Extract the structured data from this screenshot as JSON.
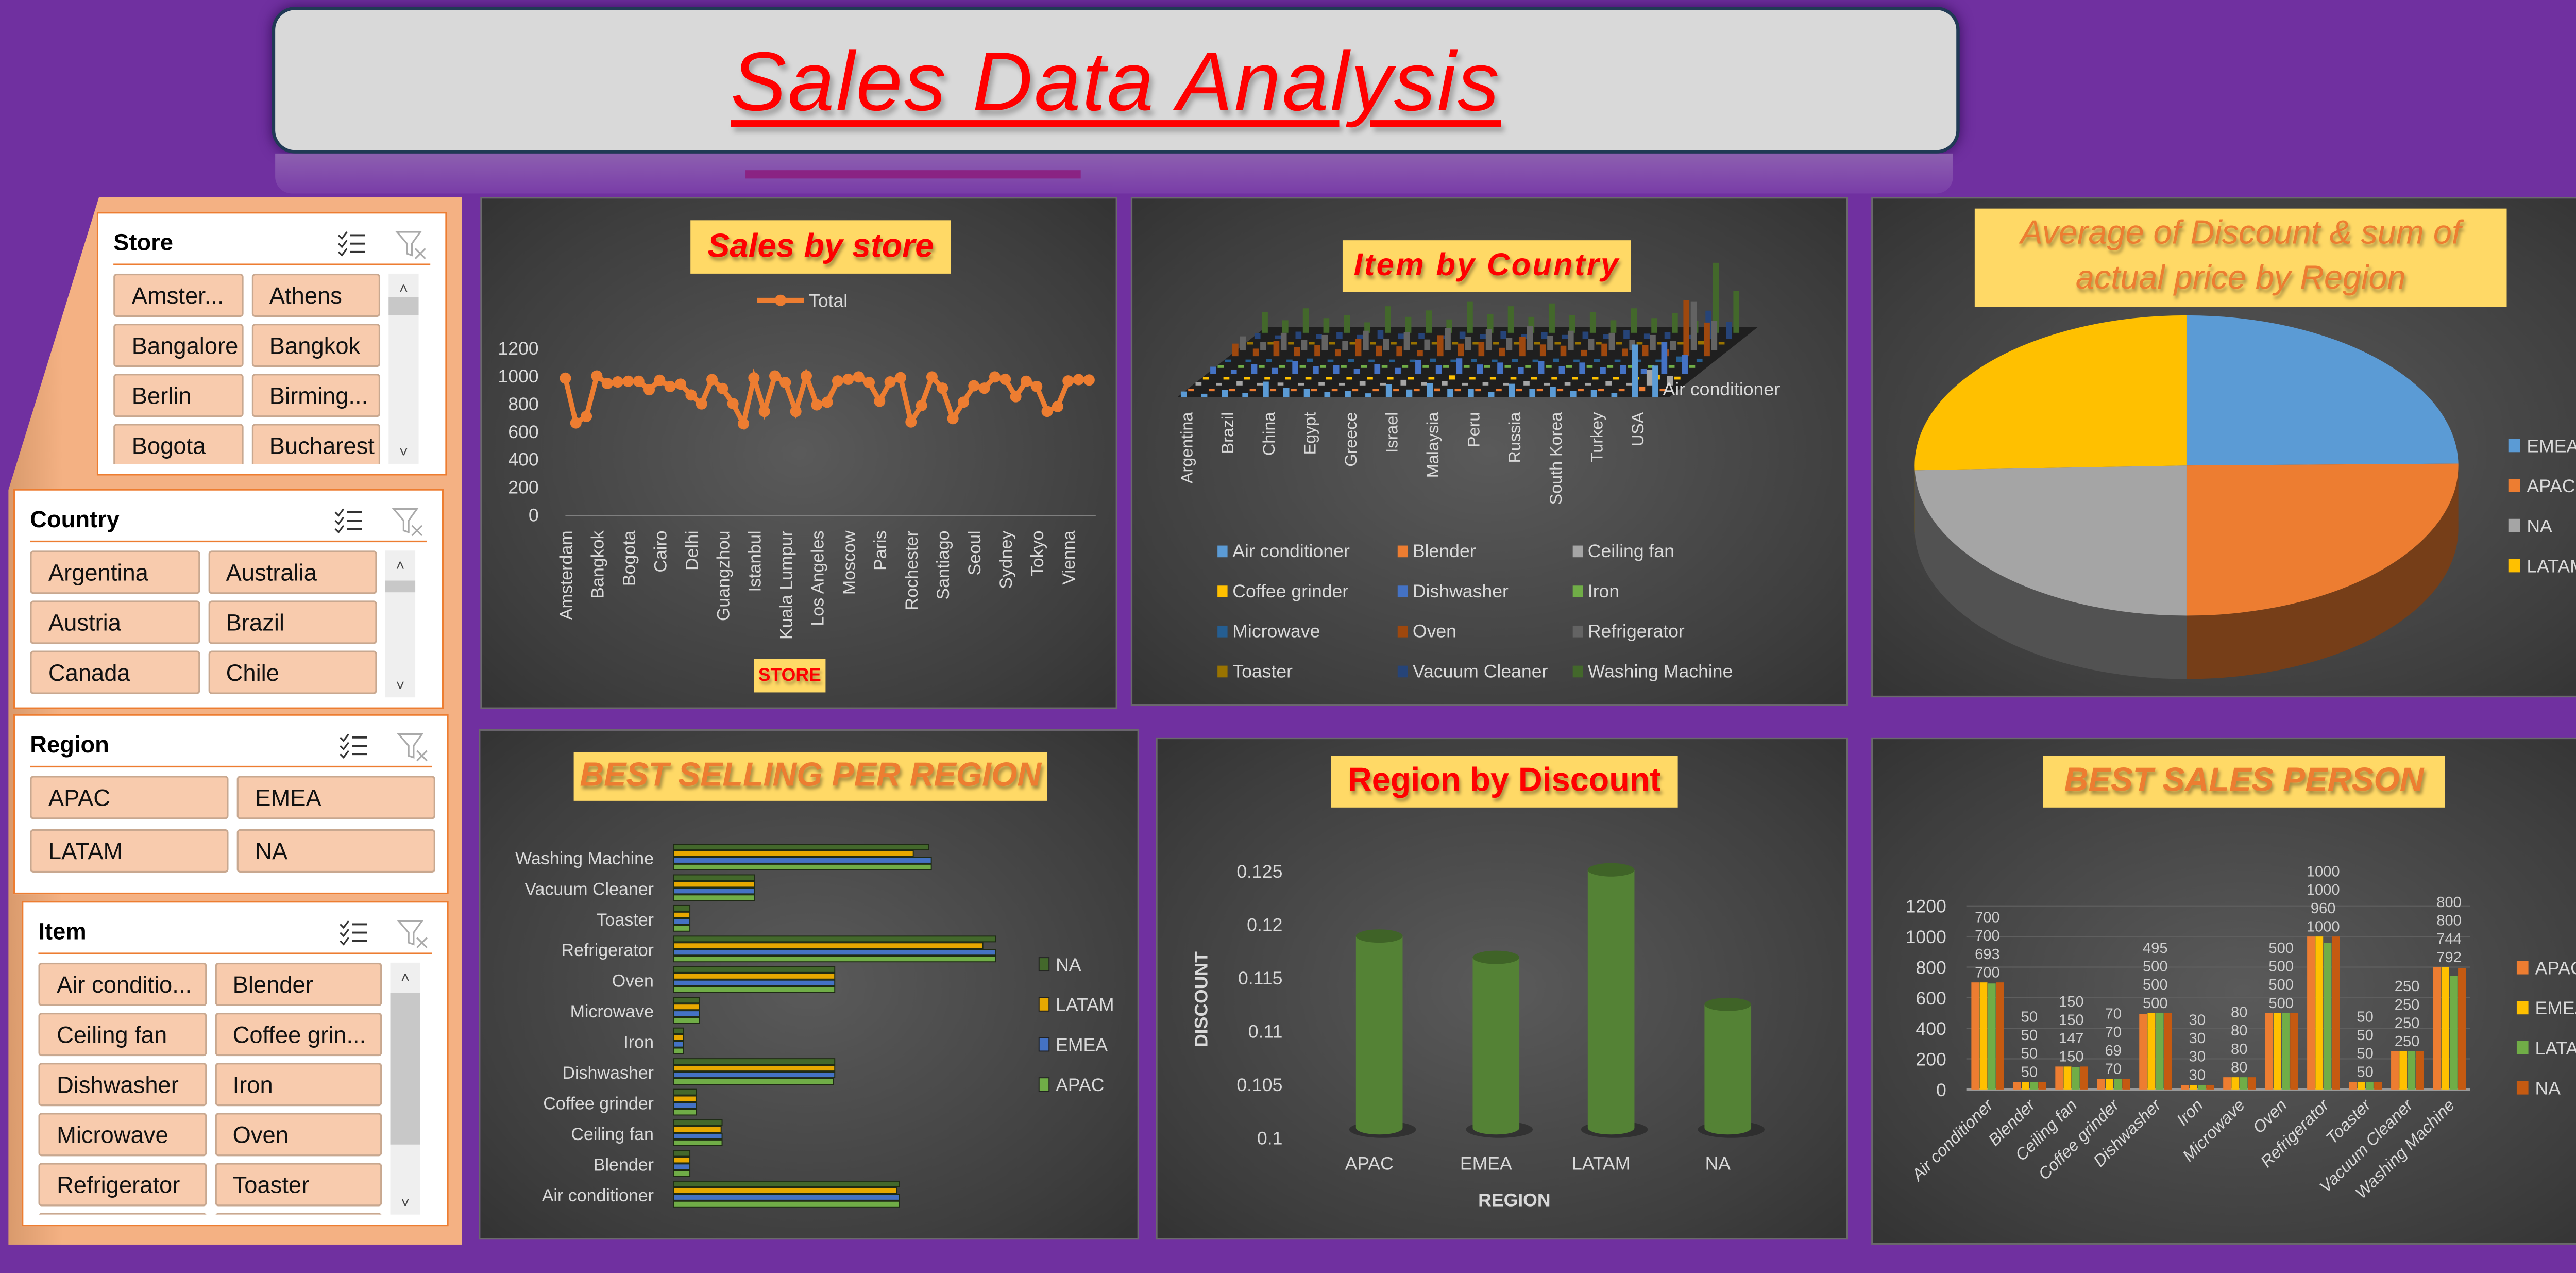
{
  "header": {
    "title": "Sales Data Analysis"
  },
  "slicers": {
    "store": {
      "title": "Store",
      "items": [
        "Amster...",
        "Athens",
        "Bangalore",
        "Bangkok",
        "Berlin",
        "Birming...",
        "Bogota",
        "Bucharest"
      ]
    },
    "country": {
      "title": "Country",
      "items": [
        "Argentina",
        "Australia",
        "Austria",
        "Brazil",
        "Canada",
        "Chile"
      ]
    },
    "region": {
      "title": "Region",
      "items": [
        "APAC",
        "EMEA",
        "LATAM",
        "NA"
      ]
    },
    "item": {
      "title": "Item",
      "items": [
        "Air conditio...",
        "Blender",
        "Ceiling fan",
        "Coffee grin...",
        "Dishwasher",
        "Iron",
        "Microwave",
        "Oven",
        "Refrigerator",
        "Toaster"
      ]
    }
  },
  "icons": {
    "multi_select": "multi-select-checklist-icon",
    "clear_filter": "clear-filter-funnel-icon"
  },
  "colors": {
    "background": "#7030a0",
    "title_red": "#ff0000",
    "title_box": "#ffd966",
    "slicer_button": "#f8cbad",
    "accent_orange": "#ed7d31"
  },
  "chart_data": [
    {
      "id": "sales_by_store",
      "type": "line",
      "title": "Sales by store",
      "legend": [
        "Total"
      ],
      "legend_position": "top",
      "xlabel": "STORE",
      "ylabel": "",
      "x_tick_labels": [
        "Amsterdam",
        "Bangkok",
        "Bogota",
        "Cairo",
        "Delhi",
        "Guangzhou",
        "Istanbul",
        "Kuala Lumpur",
        "Los Angeles",
        "Moscow",
        "Paris",
        "Rochester",
        "Santiago",
        "Seoul",
        "Sydney",
        "Tokyo",
        "Vienna"
      ],
      "values": [
        988,
        666,
        713,
        1004,
        950,
        961,
        966,
        966,
        905,
        973,
        928,
        945,
        867,
        803,
        978,
        914,
        805,
        661,
        990,
        749,
        1004,
        957,
        749,
        1004,
        796,
        815,
        968,
        980,
        997,
        957,
        822,
        961,
        992,
        673,
        791,
        997,
        916,
        697,
        815,
        933,
        916,
        997,
        980,
        855,
        966,
        928,
        749,
        784,
        968,
        978,
        975
      ],
      "ylim": [
        0,
        1200
      ],
      "yticks": [
        0,
        200,
        400,
        600,
        800,
        1000,
        1200
      ],
      "color": "#ed7d31"
    },
    {
      "id": "item_by_country",
      "type": "bar",
      "title": "Item by Country",
      "style": "3d-column",
      "categories": [
        "Argentina",
        "Brazil",
        "China",
        "Egypt",
        "Greece",
        "Israel",
        "Malaysia",
        "Peru",
        "Russia",
        "South Korea",
        "Turkey",
        "USA"
      ],
      "depth_label": "Air conditioner",
      "legend_position": "bottom",
      "series": [
        {
          "name": "Air conditioner",
          "color": "#5b9bd5",
          "values": [
            8,
            10,
            22,
            12,
            9,
            18,
            20,
            12,
            19,
            15,
            10,
            75
          ]
        },
        {
          "name": "Blender",
          "color": "#ed7d31",
          "values": [
            2,
            3,
            2,
            3,
            2,
            3,
            4,
            3,
            2,
            3,
            2,
            6
          ]
        },
        {
          "name": "Ceiling fan",
          "color": "#a5a5a5",
          "values": [
            5,
            6,
            4,
            5,
            6,
            8,
            6,
            5,
            6,
            5,
            6,
            22
          ]
        },
        {
          "name": "Coffee grinder",
          "color": "#ffc000",
          "values": [
            2,
            3,
            2,
            2,
            3,
            2,
            6,
            2,
            3,
            2,
            2,
            7
          ]
        },
        {
          "name": "Dishwasher",
          "color": "#4472c4",
          "values": [
            10,
            14,
            18,
            12,
            14,
            20,
            22,
            16,
            18,
            16,
            12,
            45
          ]
        },
        {
          "name": "Iron",
          "color": "#70ad47",
          "values": [
            1,
            1,
            1,
            1,
            1,
            1,
            1,
            1,
            1,
            1,
            1,
            4
          ]
        },
        {
          "name": "Microwave",
          "color": "#255e91",
          "values": [
            3,
            4,
            5,
            4,
            3,
            5,
            4,
            4,
            5,
            4,
            3,
            8
          ]
        },
        {
          "name": "Oven",
          "color": "#9e480e",
          "values": [
            18,
            22,
            16,
            25,
            14,
            30,
            20,
            28,
            15,
            18,
            16,
            80
          ]
        },
        {
          "name": "Refrigerator",
          "color": "#636363",
          "values": [
            20,
            25,
            22,
            28,
            26,
            32,
            30,
            35,
            28,
            25,
            22,
            70
          ]
        },
        {
          "name": "Toaster",
          "color": "#997300",
          "values": [
            2,
            2,
            3,
            2,
            2,
            3,
            2,
            3,
            2,
            3,
            2,
            5
          ]
        },
        {
          "name": "Vacuum Cleaner",
          "color": "#264478",
          "values": [
            8,
            10,
            9,
            12,
            8,
            10,
            11,
            9,
            10,
            12,
            9,
            40
          ]
        },
        {
          "name": "Washing Machine",
          "color": "#43682b",
          "values": [
            30,
            35,
            25,
            38,
            32,
            45,
            38,
            42,
            30,
            35,
            28,
            100
          ]
        }
      ]
    },
    {
      "id": "discount_price_by_region",
      "type": "pie",
      "style": "3d",
      "title": "Average of Discount & sum of actual price by Region",
      "legend_position": "right",
      "labels": [
        "EMEA",
        "APAC",
        "NA",
        "LATAM"
      ],
      "values": [
        24.8,
        25.2,
        24.5,
        25.5
      ],
      "colors": [
        "#5b9bd5",
        "#ed7d31",
        "#a5a5a5",
        "#ffc000"
      ]
    },
    {
      "id": "best_selling_per_region",
      "type": "bar",
      "orientation": "horizontal",
      "title": "BEST SELLING PER REGION",
      "legend_position": "right",
      "categories": [
        "Air conditioner",
        "Blender",
        "Ceiling fan",
        "Coffee grinder",
        "Dishwasher",
        "Iron",
        "Microwave",
        "Oven",
        "Refrigerator",
        "Toaster",
        "Vacuum Cleaner",
        "Washing Machine"
      ],
      "series": [
        {
          "name": "NA",
          "color": "#43682b",
          "values": [
            700,
            50,
            150,
            70,
            500,
            30,
            80,
            500,
            1000,
            50,
            250,
            792
          ]
        },
        {
          "name": "LATAM",
          "color": "#e6a800",
          "values": [
            693,
            50,
            147,
            69,
            500,
            30,
            80,
            500,
            960,
            50,
            250,
            744
          ]
        },
        {
          "name": "EMEA",
          "color": "#4472c4",
          "values": [
            700,
            50,
            150,
            70,
            500,
            30,
            80,
            500,
            1000,
            50,
            250,
            800
          ]
        },
        {
          "name": "APAC",
          "color": "#70ad47",
          "values": [
            700,
            50,
            150,
            70,
            495,
            30,
            80,
            500,
            1000,
            50,
            250,
            800
          ]
        }
      ],
      "xlim": [
        0,
        1000
      ]
    },
    {
      "id": "region_by_discount",
      "type": "bar",
      "style": "3d-cylinder",
      "title": "Region by Discount",
      "xlabel": "REGION",
      "ylabel": "DISCOUNT",
      "categories": [
        "APAC",
        "EMEA",
        "LATAM",
        "NA"
      ],
      "values": [
        0.1189,
        0.1169,
        0.1251,
        0.1125
      ],
      "ylim": [
        0.1,
        0.125
      ],
      "yticks": [
        "0.1",
        "0.105",
        "0.11",
        "0.115",
        "0.12",
        "0.125"
      ],
      "color": "#548235"
    },
    {
      "id": "best_sales_person",
      "type": "bar",
      "title": "BEST SALES PERSON",
      "legend_position": "right",
      "categories": [
        "Air conditioner",
        "Blender",
        "Ceiling fan",
        "Coffee grinder",
        "Dishwasher",
        "Iron",
        "Microwave",
        "Oven",
        "Refrigerator",
        "Toaster",
        "Vacuum Cleaner",
        "Washing Machine"
      ],
      "series": [
        {
          "name": "APAC",
          "color": "#ed7d31",
          "values": [
            700,
            50,
            150,
            70,
            495,
            30,
            80,
            500,
            1000,
            50,
            250,
            800
          ]
        },
        {
          "name": "EMEA",
          "color": "#ffc000",
          "values": [
            700,
            50,
            150,
            70,
            500,
            30,
            80,
            500,
            1000,
            50,
            250,
            800
          ]
        },
        {
          "name": "LATAM",
          "color": "#70ad47",
          "values": [
            693,
            50,
            147,
            69,
            500,
            30,
            80,
            500,
            960,
            50,
            250,
            744
          ]
        },
        {
          "name": "NA",
          "color": "#c55a11",
          "values": [
            700,
            50,
            150,
            70,
            500,
            30,
            80,
            500,
            1000,
            50,
            250,
            792
          ]
        }
      ],
      "ylim": [
        0,
        1200
      ],
      "yticks": [
        0,
        200,
        400,
        600,
        800,
        1000,
        1200
      ],
      "data_labels": true
    }
  ]
}
